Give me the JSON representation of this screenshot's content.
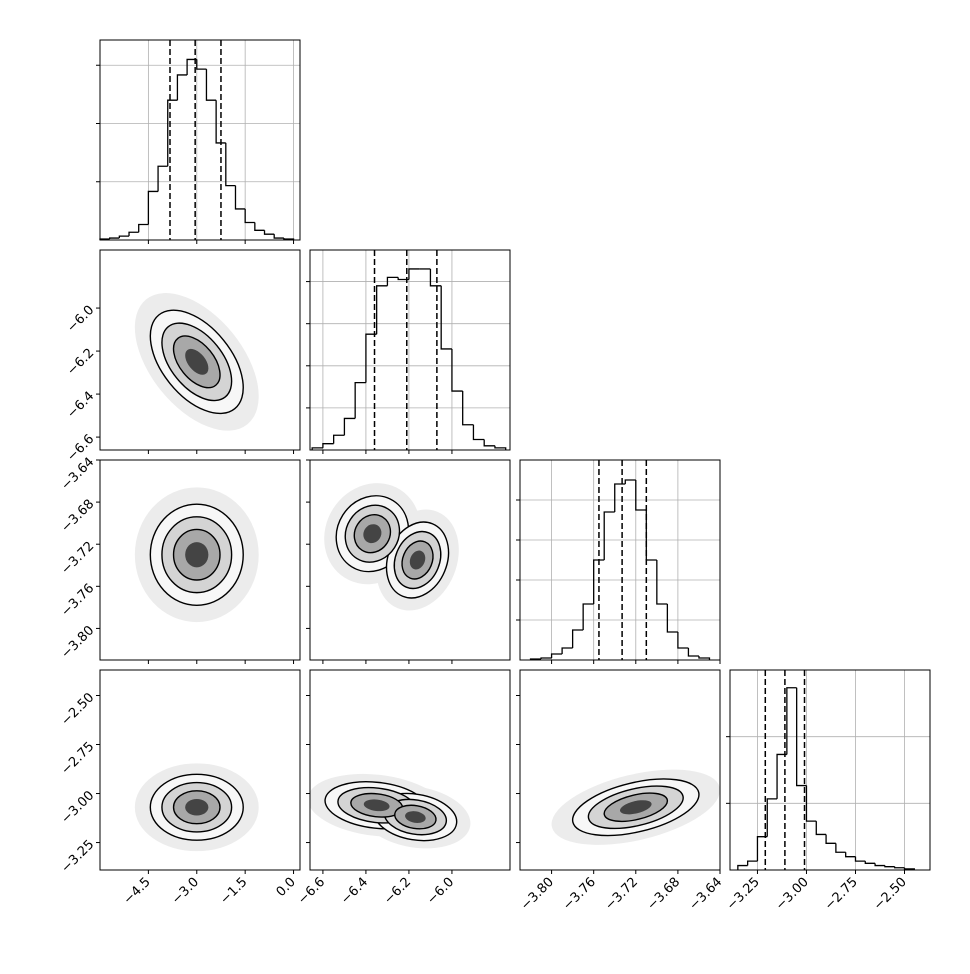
{
  "chart_data": {
    "type": "corner",
    "params": [
      {
        "lim": [
          -6.0,
          0.2
        ],
        "ticks": [
          {
            "value": -4.5,
            "label": "−4.5"
          },
          {
            "value": -3.0,
            "label": "−3.0"
          },
          {
            "value": -1.5,
            "label": "−1.5"
          },
          {
            "value": 0.0,
            "label": "0.0"
          }
        ]
      },
      {
        "lim": [
          -6.66,
          -5.73
        ],
        "ticks": [
          {
            "value": -6.6,
            "label": "−6.6"
          },
          {
            "value": -6.4,
            "label": "−6.4"
          },
          {
            "value": -6.2,
            "label": "−6.2"
          },
          {
            "value": -6.0,
            "label": "−6.0"
          }
        ]
      },
      {
        "lim": [
          -3.83,
          -3.64
        ],
        "ticks": [
          {
            "value": -3.8,
            "label": "−3.80"
          },
          {
            "value": -3.76,
            "label": "−3.76"
          },
          {
            "value": -3.72,
            "label": "−3.72"
          },
          {
            "value": -3.68,
            "label": "−3.68"
          },
          {
            "value": -3.64,
            "label": "−3.64"
          }
        ]
      },
      {
        "lim": [
          -3.39,
          -2.37
        ],
        "ticks": [
          {
            "value": -3.25,
            "label": "−3.25"
          },
          {
            "value": -3.0,
            "label": "−3.00"
          },
          {
            "value": -2.75,
            "label": "−2.75"
          },
          {
            "value": -2.5,
            "label": "−2.50"
          }
        ]
      }
    ],
    "histograms": [
      {
        "bins": [
          -6.0,
          -5.7,
          -5.4,
          -5.1,
          -4.8,
          -4.5,
          -4.2,
          -3.9,
          -3.6,
          -3.3,
          -3.0,
          -2.7,
          -2.4,
          -2.1,
          -1.8,
          -1.5,
          -1.2,
          -0.9,
          -0.6,
          -0.3,
          0.0
        ],
        "values": [
          0.005,
          0.01,
          0.02,
          0.04,
          0.08,
          0.25,
          0.38,
          0.72,
          0.85,
          0.93,
          0.88,
          0.72,
          0.5,
          0.28,
          0.16,
          0.09,
          0.05,
          0.03,
          0.01,
          0.005
        ],
        "quantiles": [
          -3.83,
          -3.05,
          -2.25
        ],
        "ylim": [
          0,
          1.03
        ],
        "yticks": [
          0.3,
          0.6,
          0.9
        ]
      },
      {
        "bins": [
          -6.65,
          -6.6,
          -6.55,
          -6.5,
          -6.45,
          -6.4,
          -6.35,
          -6.3,
          -6.25,
          -6.2,
          -6.15,
          -6.1,
          -6.05,
          -6.0,
          -5.95,
          -5.9,
          -5.85,
          -5.8,
          -5.75
        ],
        "values": [
          0.01,
          0.03,
          0.07,
          0.15,
          0.32,
          0.55,
          0.78,
          0.82,
          0.81,
          0.86,
          0.86,
          0.78,
          0.48,
          0.28,
          0.12,
          0.05,
          0.02,
          0.01
        ],
        "quantiles": [
          -6.36,
          -6.21,
          -6.07
        ],
        "ylim": [
          0,
          0.95
        ],
        "yticks": [
          0.2,
          0.4,
          0.6,
          0.8
        ]
      },
      {
        "bins": [
          -3.82,
          -3.81,
          -3.8,
          -3.79,
          -3.78,
          -3.77,
          -3.76,
          -3.75,
          -3.74,
          -3.73,
          -3.72,
          -3.71,
          -3.7,
          -3.69,
          -3.68,
          -3.67,
          -3.66,
          -3.65
        ],
        "values": [
          0.005,
          0.01,
          0.03,
          0.06,
          0.15,
          0.28,
          0.5,
          0.74,
          0.88,
          0.9,
          0.75,
          0.5,
          0.28,
          0.14,
          0.06,
          0.02,
          0.01
        ],
        "quantiles": [
          -3.755,
          -3.733,
          -3.71
        ],
        "ylim": [
          0,
          1
        ],
        "yticks": [
          0.2,
          0.4,
          0.6,
          0.8
        ]
      },
      {
        "bins": [
          -3.35,
          -3.3,
          -3.25,
          -3.2,
          -3.15,
          -3.1,
          -3.05,
          -3.0,
          -2.95,
          -2.9,
          -2.85,
          -2.8,
          -2.75,
          -2.7,
          -2.65,
          -2.6,
          -2.55,
          -2.5,
          -2.45
        ],
        "values": [
          0.02,
          0.04,
          0.15,
          0.32,
          0.52,
          0.82,
          0.38,
          0.22,
          0.16,
          0.12,
          0.08,
          0.06,
          0.04,
          0.03,
          0.02,
          0.015,
          0.01,
          0.005
        ],
        "quantiles": [
          -3.21,
          -3.11,
          -3.01
        ],
        "ylim": [
          0,
          0.9
        ],
        "yticks": [
          0.3,
          0.6
        ]
      }
    ],
    "panels": [
      {
        "blobs": [
          {
            "x": -3.0,
            "y": -6.25,
            "sx": 0.6,
            "sy": 0.1,
            "rho": -0.5
          }
        ]
      },
      {
        "blobs": [
          {
            "x": -3.0,
            "y": -3.73,
            "sx": 0.6,
            "sy": 0.02,
            "rho": 0
          }
        ]
      },
      {
        "blobs": [
          {
            "x": -6.37,
            "y": -3.71,
            "sx": 0.07,
            "sy": 0.015,
            "rho": 0.1
          },
          {
            "x": -6.16,
            "y": -3.735,
            "sx": 0.06,
            "sy": 0.015,
            "rho": 0.2
          }
        ]
      },
      {
        "blobs": [
          {
            "x": -3.0,
            "y": -3.07,
            "sx": 0.6,
            "sy": 0.07,
            "rho": 0
          }
        ]
      },
      {
        "blobs": [
          {
            "x": -6.35,
            "y": -3.06,
            "sx": 0.1,
            "sy": 0.05,
            "rho": -0.2
          },
          {
            "x": -6.17,
            "y": -3.12,
            "sx": 0.08,
            "sy": 0.05,
            "rho": -0.2
          }
        ]
      },
      {
        "blobs": [
          {
            "x": -3.72,
            "y": -3.07,
            "sx": 0.025,
            "sy": 0.06,
            "rho": 0.45
          }
        ]
      }
    ]
  }
}
